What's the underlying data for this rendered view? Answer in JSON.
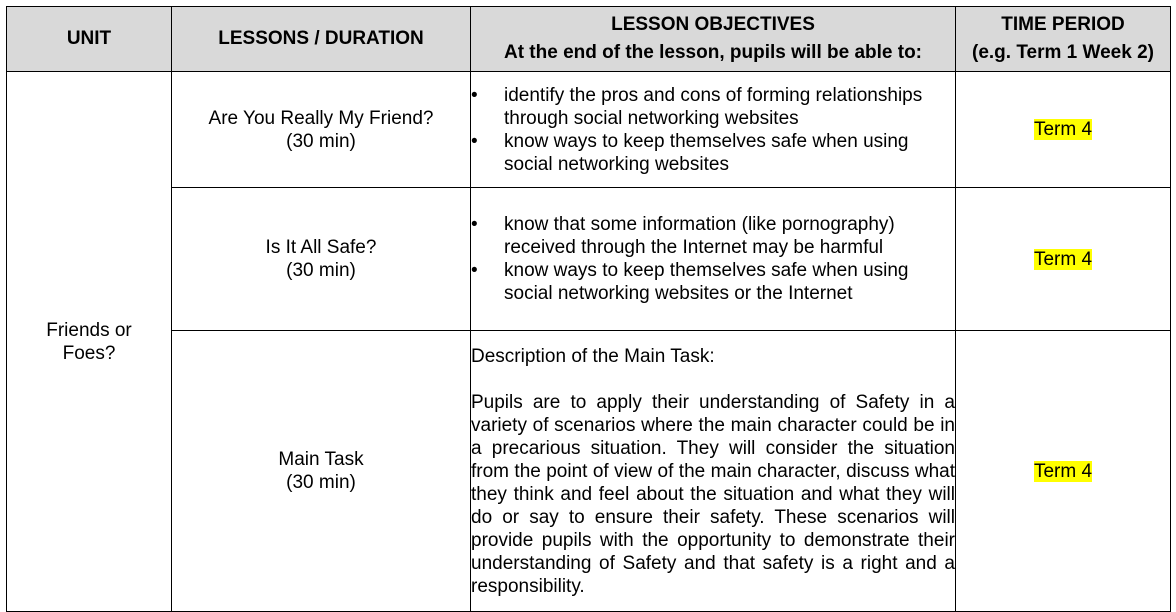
{
  "headers": {
    "unit": "UNIT",
    "lessons": "LESSONS / DURATION",
    "objectives_line1": "LESSON OBJECTIVES",
    "objectives_line2": "At the end of the lesson, pupils will be able to:",
    "time_line1": "TIME PERIOD",
    "time_line2": "(e.g. Term 1 Week 2)"
  },
  "unit": {
    "line1": "Friends or",
    "line2": "Foes?"
  },
  "rows": [
    {
      "lesson_title": "Are You Really My Friend?",
      "duration": "(30 min)",
      "objectives": [
        "identify the pros and cons of forming relationships through social networking websites",
        "know ways to keep themselves safe when using social networking websites"
      ],
      "term": "Term 4"
    },
    {
      "lesson_title": "Is It All Safe?",
      "duration": "(30 min)",
      "objectives": [
        "know that some information (like pornography) received through the Internet may be harmful",
        "know ways to keep themselves safe when using social networking websites or the Internet"
      ],
      "term": "Term 4"
    },
    {
      "lesson_title": "Main Task",
      "duration": "(30 min)",
      "task_heading": "Description of the Main Task:",
      "task_body": "Pupils are to apply their understanding of Safety in a variety of scenarios where the main character could be in a precarious situation. They will consider the situation from the point of view of the main character, discuss what they think and feel about the situation and what they will do or say to ensure their safety. These scenarios will provide pupils with the opportunity to demonstrate their understanding of Safety and that safety is a right and a responsibility.",
      "term": "Term 4"
    }
  ],
  "bullet_glyph": "•",
  "highlight_color": "#ffff00",
  "header_bg": "#d9d9d9"
}
